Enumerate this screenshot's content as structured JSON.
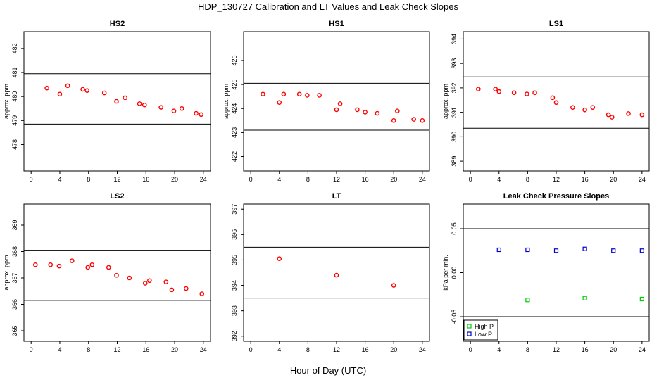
{
  "title": "HDP_130727  Calibration and LT Values and Leak Check Slopes",
  "xlabel": "Hour of Day (UTC)",
  "chart_data": [
    {
      "type": "scatter",
      "title": "HS2",
      "ylabel": "approx. ppm",
      "xlim": [
        -1,
        25
      ],
      "ylim": [
        476.9,
        482.7
      ],
      "xticks": [
        0,
        4,
        8,
        12,
        16,
        20,
        24
      ],
      "yticks": [
        478,
        479,
        480,
        481,
        482
      ],
      "hlines": [
        478.85,
        480.95
      ],
      "series": [
        {
          "color": "#ff0000",
          "marker": "circle",
          "x": [
            2.2,
            4.0,
            5.1,
            7.2,
            7.8,
            10.2,
            11.9,
            13.1,
            15.1,
            15.8,
            18.1,
            19.9,
            21.0,
            23.0,
            23.7
          ],
          "y": [
            480.35,
            480.1,
            480.45,
            480.3,
            480.25,
            480.15,
            479.8,
            479.95,
            479.7,
            479.65,
            479.55,
            479.4,
            479.5,
            479.3,
            479.25
          ]
        }
      ]
    },
    {
      "type": "scatter",
      "title": "HS1",
      "ylabel": "approx. ppm",
      "xlim": [
        -1,
        25
      ],
      "ylim": [
        421.4,
        427.2
      ],
      "xticks": [
        0,
        4,
        8,
        12,
        16,
        20,
        24
      ],
      "yticks": [
        422,
        423,
        424,
        425,
        426
      ],
      "hlines": [
        423.1,
        425.05
      ],
      "series": [
        {
          "color": "#ff0000",
          "marker": "circle",
          "x": [
            1.7,
            4.0,
            4.6,
            6.8,
            7.9,
            9.6,
            12.0,
            12.5,
            14.9,
            16.0,
            17.7,
            20.0,
            20.5,
            22.8,
            24.0
          ],
          "y": [
            424.6,
            424.25,
            424.6,
            424.6,
            424.55,
            424.55,
            423.95,
            424.2,
            423.95,
            423.85,
            423.8,
            423.5,
            423.9,
            423.55,
            423.5
          ]
        }
      ]
    },
    {
      "type": "scatter",
      "title": "LS1",
      "ylabel": "approx. ppm",
      "xlim": [
        -1,
        25
      ],
      "ylim": [
        388.6,
        394.3
      ],
      "xticks": [
        0,
        4,
        8,
        12,
        16,
        20,
        24
      ],
      "yticks": [
        389,
        390,
        391,
        392,
        393,
        394
      ],
      "hlines": [
        390.35,
        392.45
      ],
      "series": [
        {
          "color": "#ff0000",
          "marker": "circle",
          "x": [
            1.1,
            3.5,
            4.0,
            6.1,
            7.9,
            9.0,
            11.5,
            12.0,
            14.3,
            16.0,
            17.1,
            19.3,
            19.8,
            22.1,
            24.0
          ],
          "y": [
            391.95,
            391.95,
            391.85,
            391.8,
            391.75,
            391.8,
            391.6,
            391.4,
            391.2,
            391.1,
            391.2,
            390.9,
            390.8,
            390.95,
            390.9
          ]
        }
      ]
    },
    {
      "type": "scatter",
      "title": "LS2",
      "ylabel": "approx. ppm",
      "xlim": [
        -1,
        25
      ],
      "ylim": [
        364.6,
        369.8
      ],
      "xticks": [
        0,
        4,
        8,
        12,
        16,
        20,
        24
      ],
      "yticks": [
        365,
        366,
        367,
        368,
        369
      ],
      "hlines": [
        366.15,
        368.05
      ],
      "series": [
        {
          "color": "#ff0000",
          "marker": "circle",
          "x": [
            0.6,
            2.7,
            3.9,
            5.7,
            7.9,
            8.5,
            10.8,
            11.9,
            13.7,
            15.9,
            16.5,
            18.8,
            19.6,
            21.6,
            23.8
          ],
          "y": [
            367.5,
            367.5,
            367.45,
            367.65,
            367.4,
            367.5,
            367.4,
            367.1,
            367.0,
            366.8,
            366.9,
            366.85,
            366.55,
            366.6,
            366.4
          ]
        }
      ]
    },
    {
      "type": "scatter",
      "title": "LT",
      "ylabel": "",
      "xlim": [
        -1,
        25
      ],
      "ylim": [
        391.8,
        397.2
      ],
      "xticks": [
        0,
        4,
        8,
        12,
        16,
        20,
        24
      ],
      "yticks": [
        392,
        393,
        394,
        395,
        396,
        397
      ],
      "hlines": [
        393.5,
        395.5
      ],
      "series": [
        {
          "color": "#ff0000",
          "marker": "circle",
          "x": [
            4.0,
            12.0,
            20.0
          ],
          "y": [
            395.05,
            394.4,
            394.0
          ]
        }
      ]
    },
    {
      "type": "scatter",
      "title": "Leak Check Pressure Slopes",
      "ylabel": "kPa per min.",
      "xlim": [
        -1,
        25
      ],
      "ylim": [
        -0.078,
        0.078
      ],
      "xticks": [
        0,
        4,
        8,
        12,
        16,
        20,
        24
      ],
      "yticks": [
        -0.05,
        0.0,
        0.05
      ],
      "ytick_labels": [
        "-0.05",
        "0.00",
        "0.05"
      ],
      "hlines": [
        -0.05,
        0.05
      ],
      "legend": {
        "placement": "bottom-left",
        "items": [
          {
            "name": "High P",
            "color": "#00cc00"
          },
          {
            "name": "Low P",
            "color": "#0000cc"
          }
        ]
      },
      "series": [
        {
          "name": "High P",
          "color": "#00cc00",
          "marker": "square",
          "x": [
            8,
            16,
            24
          ],
          "y": [
            -0.031,
            -0.029,
            -0.03
          ]
        },
        {
          "name": "Low P",
          "color": "#0000cc",
          "marker": "square",
          "x": [
            4,
            8,
            12,
            16,
            20,
            24
          ],
          "y": [
            0.026,
            0.026,
            0.025,
            0.027,
            0.025,
            0.025
          ]
        }
      ]
    }
  ]
}
